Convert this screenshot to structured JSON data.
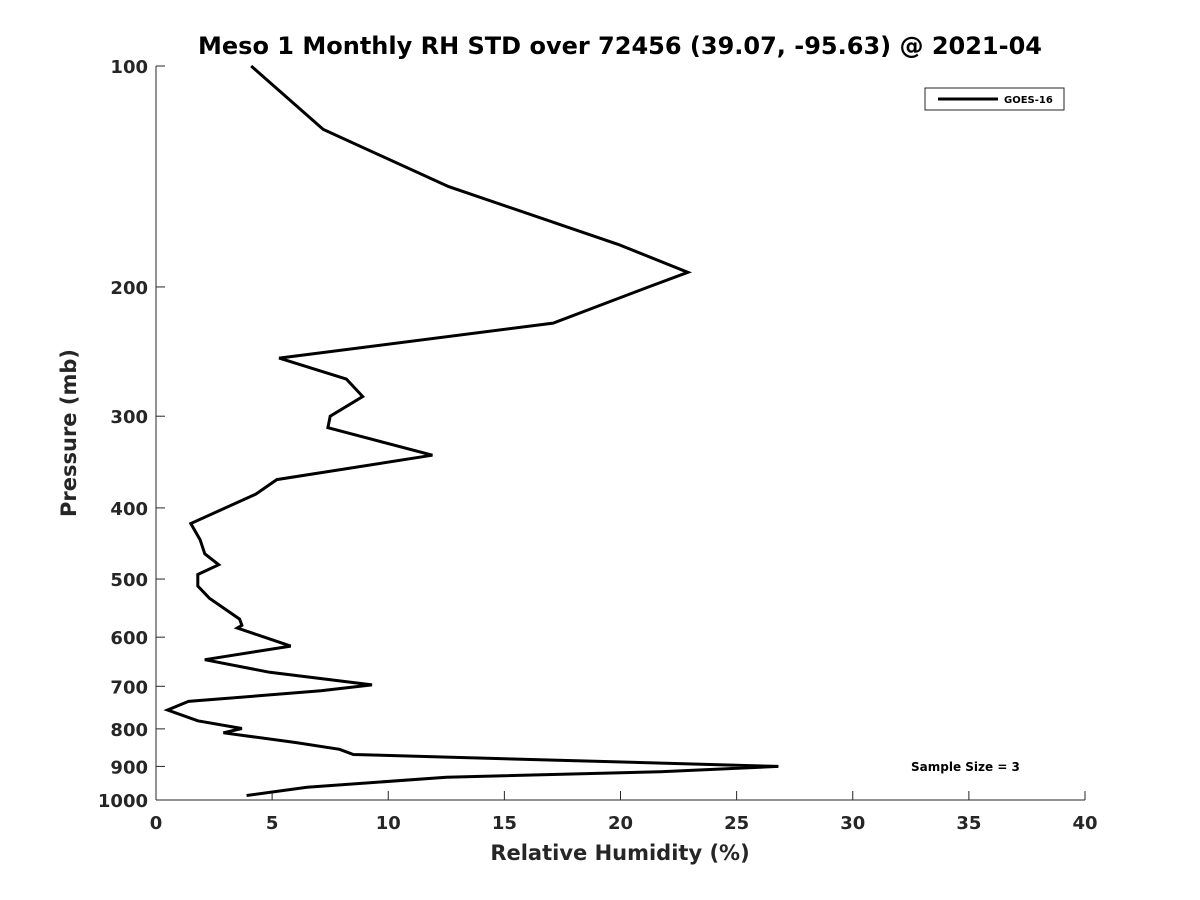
{
  "chart_data": {
    "type": "line",
    "title": "Meso 1 Monthly RH STD over 72456 (39.07, -95.63) @ 2021-04",
    "xlabel": "Relative Humidity (%)",
    "ylabel": "Pressure (mb)",
    "xlim": [
      0,
      40
    ],
    "ylim": [
      100,
      1000
    ],
    "y_scale": "log",
    "y_reversed": true,
    "x_ticks": [
      0,
      5,
      10,
      15,
      20,
      25,
      30,
      35,
      40
    ],
    "x_tick_labels": [
      "0",
      "5",
      "10",
      "15",
      "20",
      "25",
      "30",
      "35",
      "40"
    ],
    "y_ticks": [
      100,
      200,
      300,
      400,
      500,
      600,
      700,
      800,
      900,
      1000
    ],
    "y_tick_labels": [
      "100",
      "200",
      "300",
      "400",
      "500",
      "600",
      "700",
      "800",
      "900",
      "1000"
    ],
    "grid": false,
    "legend_position": "top-right",
    "series": [
      {
        "name": "GOES-16",
        "color": "#000000",
        "x": [
          4.1,
          7.2,
          12.6,
          19.9,
          22.9,
          21.2,
          17.1,
          5.3,
          8.2,
          8.9,
          7.5,
          7.4,
          11.9,
          5.2,
          4.3,
          1.5,
          1.9,
          2.1,
          2.7,
          1.8,
          1.8,
          2.3,
          3.6,
          3.7,
          3.5,
          5.8,
          2.1,
          4.9,
          9.3,
          7.1,
          1.4,
          0.5,
          1.8,
          3.7,
          2.9,
          6.0,
          7.9,
          8.5,
          26.8,
          21.7,
          12.5,
          6.5,
          3.9
        ],
        "y": [
          100,
          122,
          146,
          175,
          191,
          200,
          224,
          250,
          267,
          282,
          300,
          311,
          339,
          366,
          383,
          420,
          442,
          462,
          478,
          493,
          511,
          531,
          567,
          578,
          583,
          617,
          644,
          670,
          697,
          710,
          734,
          754,
          780,
          799,
          810,
          835,
          853,
          867,
          900,
          915,
          931,
          961,
          986
        ]
      }
    ],
    "legend": [
      "GOES-16"
    ],
    "annotation": "Sample Size = 3"
  }
}
